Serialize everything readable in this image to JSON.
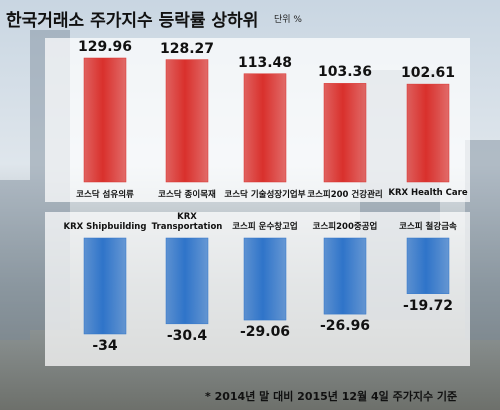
{
  "header": {
    "title": "한국거래소 주가지수 등락률 상하위",
    "unit": "단위 %"
  },
  "note": "* 2014년 말 대비 2015년 12월 4일 주가지수 기준",
  "chart_data": [
    {
      "type": "bar",
      "categories": [
        "코스닥 섬유의류",
        "코스닥 종이목재",
        "코스닥 기술성장기업부",
        "코스피200 건강관리",
        "KRX Health Care"
      ],
      "values": [
        129.96,
        128.27,
        113.48,
        103.36,
        102.61
      ],
      "color": "#d9302c"
    },
    {
      "type": "bar",
      "categories": [
        "KRX Shipbuilding",
        "KRX Transportation",
        "코스피 운수창고업",
        "코스피200중공업",
        "코스피 철강금속"
      ],
      "values": [
        -34,
        -30.4,
        -29.06,
        -26.96,
        -19.72
      ],
      "color": "#2f74c9"
    }
  ]
}
